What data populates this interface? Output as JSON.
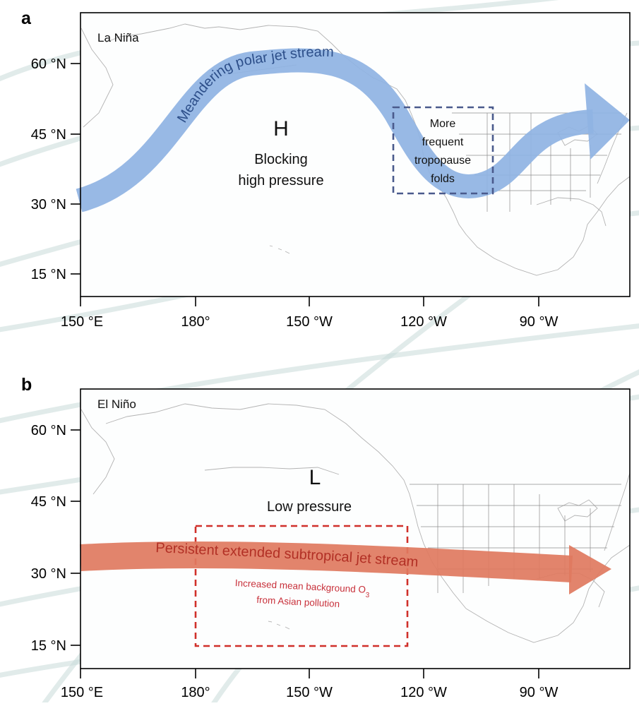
{
  "panels": {
    "a": {
      "letter": "a",
      "corner_label": "La Niña",
      "center_letter": "H",
      "center_label_line1": "Blocking",
      "center_label_line2": "high pressure",
      "jet_label": "Meandering polar jet stream",
      "box_lines": [
        "More",
        "frequent",
        "tropopause",
        "folds"
      ],
      "lat_ticks": [
        "60 °N",
        "45 °N",
        "30 °N",
        "15 °N"
      ],
      "lon_ticks": [
        "150 °E",
        "180°",
        "150 °W",
        "120 °W",
        "90 °W"
      ]
    },
    "b": {
      "letter": "b",
      "corner_label": "El Niño",
      "center_letter": "L",
      "center_label": "Low pressure",
      "jet_label": "Persistent extended subtropical jet stream",
      "pollution_line1": "Increased mean background O",
      "pollution_sub": "3",
      "pollution_line2": "from Asian pollution",
      "lat_ticks": [
        "60 °N",
        "45 °N",
        "30 °N",
        "15 °N"
      ],
      "lon_ticks": [
        "150 °E",
        "180°",
        "150 °W",
        "120 °W",
        "90 °W"
      ]
    }
  },
  "colors": {
    "polar_jet": "#8fb3e3",
    "polar_jet_text": "#2d4f8a",
    "polar_box": "#4a5a8c",
    "subtropical_jet": "#e07a5f",
    "subtropical_jet_text": "#b23025",
    "pollution_box": "#d0302a",
    "background_swirl": "#c9dbd8"
  }
}
